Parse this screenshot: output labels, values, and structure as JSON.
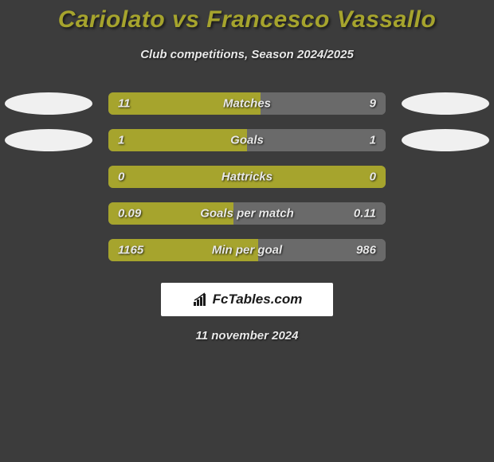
{
  "title": "Cariolato vs Francesco Vassallo",
  "subtitle": "Club competitions, Season 2024/2025",
  "date": "11 november 2024",
  "brand": "FcTables.com",
  "colors": {
    "left_bar": "#a6a42d",
    "right_bar": "#6a6a6a",
    "track": "#6a6a6a",
    "ellipse": "#f0f0f0",
    "title": "#a6a42d",
    "text": "#e8e8e8",
    "background": "#3c3c3c"
  },
  "rows": [
    {
      "label": "Matches",
      "left_value": "11",
      "right_value": "9",
      "left_pct": 55,
      "right_pct": 45,
      "show_ellipses": true
    },
    {
      "label": "Goals",
      "left_value": "1",
      "right_value": "1",
      "left_pct": 50,
      "right_pct": 50,
      "show_ellipses": true
    },
    {
      "label": "Hattricks",
      "left_value": "0",
      "right_value": "0",
      "left_pct": 100,
      "right_pct": 0,
      "show_ellipses": false
    },
    {
      "label": "Goals per match",
      "left_value": "0.09",
      "right_value": "0.11",
      "left_pct": 45,
      "right_pct": 55,
      "show_ellipses": false
    },
    {
      "label": "Min per goal",
      "left_value": "1165",
      "right_value": "986",
      "left_pct": 54,
      "right_pct": 46,
      "show_ellipses": false
    }
  ]
}
